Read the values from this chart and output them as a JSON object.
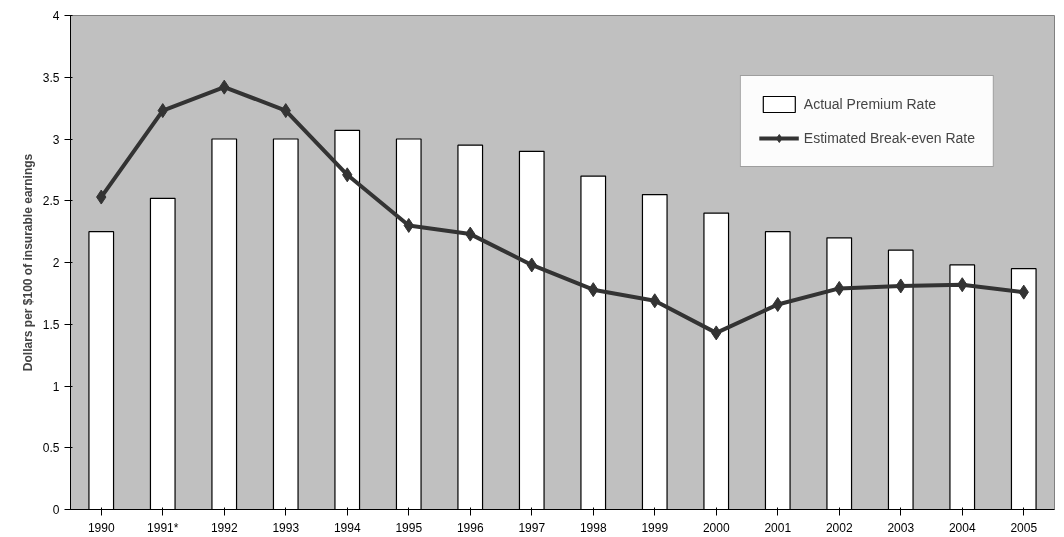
{
  "chart_data": {
    "type": "bar",
    "ylabel": "Dollars per $100 of insurable earnings",
    "categories": [
      "1990",
      "1991*",
      "1992",
      "1993",
      "1994",
      "1995",
      "1996",
      "1997",
      "1998",
      "1999",
      "2000",
      "2001",
      "2002",
      "2003",
      "2004",
      "2005"
    ],
    "series": [
      {
        "name": "Actual Premium Rate",
        "color": "#ffffff",
        "values": [
          2.25,
          2.52,
          3.0,
          3.0,
          3.07,
          3.0,
          2.95,
          2.9,
          2.7,
          2.55,
          2.4,
          2.25,
          2.2,
          2.1,
          1.98,
          1.95
        ]
      },
      {
        "name": "Estimated Break-even Rate",
        "type": "line",
        "color": "#333333",
        "marker": "diamond",
        "values": [
          2.53,
          3.23,
          3.42,
          3.23,
          2.71,
          2.3,
          2.23,
          1.98,
          1.78,
          1.69,
          1.43,
          1.66,
          1.79,
          1.81,
          1.82,
          1.76
        ]
      }
    ],
    "ylim": [
      0,
      4
    ],
    "yticks": [
      0,
      0.5,
      1,
      1.5,
      2,
      2.5,
      3,
      3.5,
      4
    ],
    "grid": false,
    "legend": "top right"
  }
}
